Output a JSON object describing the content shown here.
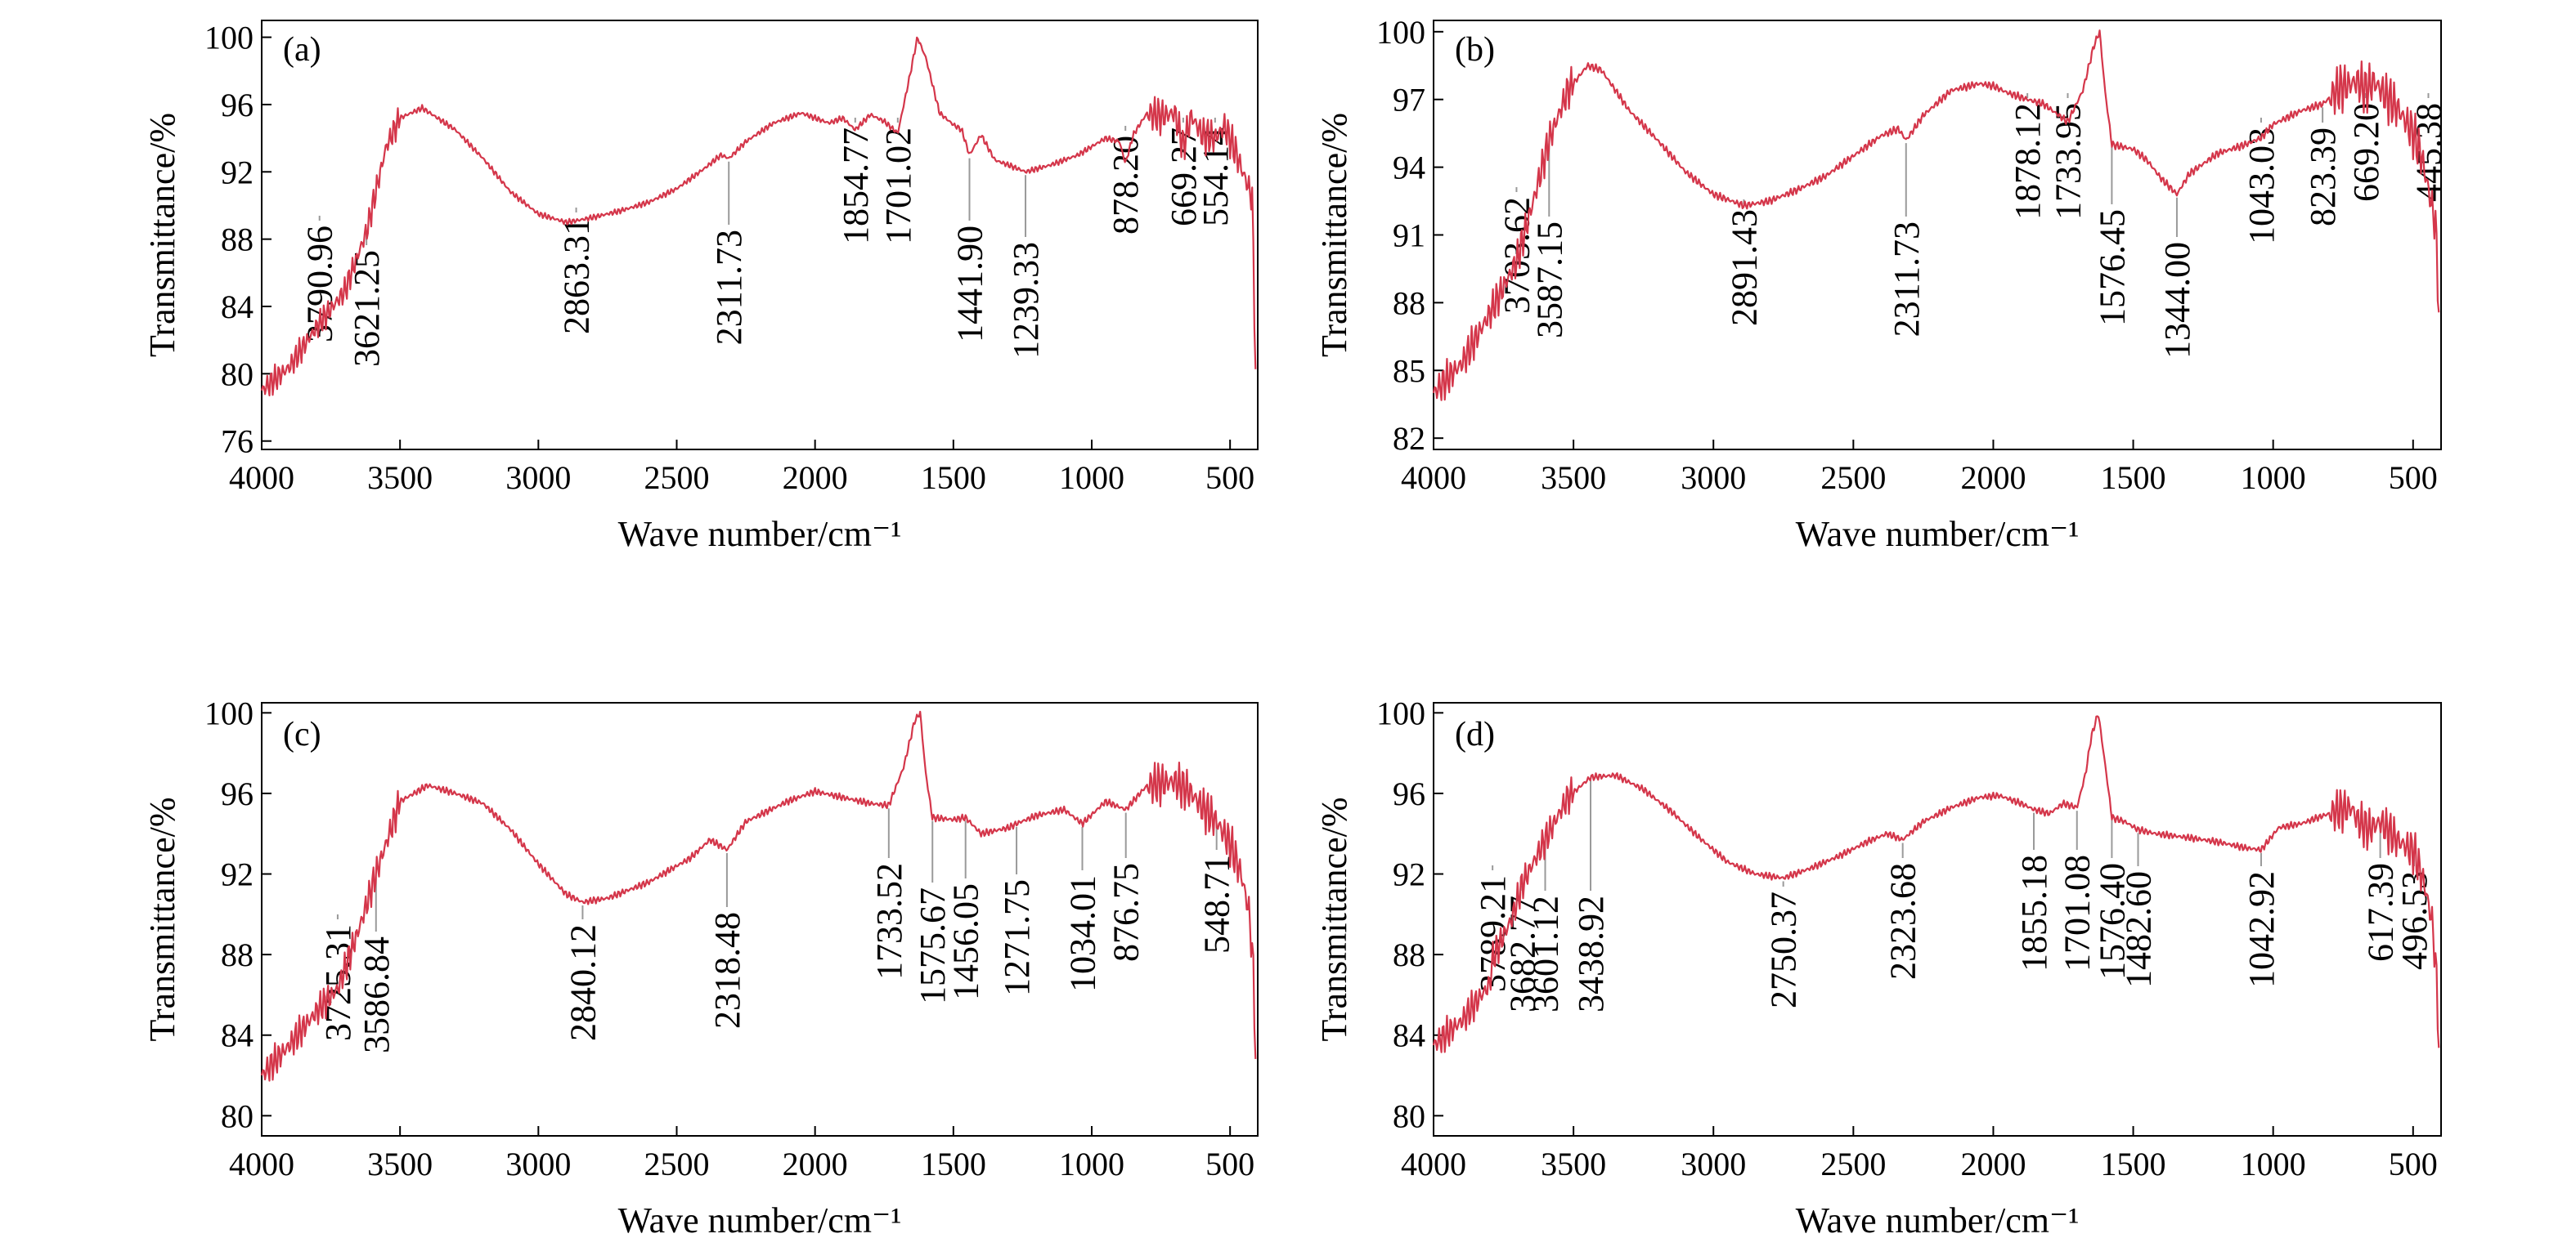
{
  "colors": {
    "spectrum": "#d4364a",
    "frame": "#000000",
    "leader": "#9a9a9a"
  },
  "chart_data": [
    {
      "type": "line",
      "panel_label": "(a)",
      "xlabel": "Wave number/cm⁻¹",
      "ylabel": "Transmittance/%",
      "xlim": [
        4000,
        400
      ],
      "ylim": [
        75.5,
        101
      ],
      "x_reversed": true,
      "xticks": [
        4000,
        3500,
        3000,
        2500,
        2000,
        1500,
        1000,
        500
      ],
      "yticks": [
        76,
        80,
        84,
        88,
        92,
        96,
        100
      ],
      "grid": false,
      "legend": "none",
      "series": [
        {
          "x": [
            4000,
            3900,
            3800,
            3700,
            3620,
            3550,
            3500,
            3420,
            3300,
            3200,
            3100,
            3000,
            2900,
            2863,
            2800,
            2700,
            2600,
            2500,
            2400,
            2340,
            2311,
            2250,
            2150,
            2050,
            2000,
            1950,
            1900,
            1855,
            1800,
            1750,
            1701,
            1660,
            1630,
            1600,
            1550,
            1500,
            1470,
            1442,
            1400,
            1350,
            1300,
            1239,
            1150,
            1050,
            950,
            900,
            878,
            850,
            800,
            750,
            700,
            669,
            640,
            600,
            554,
            520,
            480,
            450,
            420,
            410,
            405
          ],
          "y": [
            79,
            80.4,
            82.8,
            84.9,
            88.5,
            93.5,
            95.2,
            95.8,
            94.5,
            92.8,
            90.8,
            89.5,
            89.0,
            89.1,
            89.3,
            89.7,
            90.2,
            91.0,
            92.2,
            93.0,
            92.8,
            93.8,
            94.9,
            95.5,
            95.2,
            94.9,
            95.2,
            94.5,
            95.4,
            95.0,
            94.3,
            97.5,
            100,
            98.8,
            95.5,
            94.8,
            94.5,
            93.0,
            94.2,
            92.7,
            92.4,
            92.0,
            92.4,
            93.0,
            94.0,
            93.8,
            92.5,
            94.2,
            95.5,
            95.3,
            95.5,
            93.5,
            95.3,
            94.2,
            94.0,
            94.7,
            93.2,
            91.8,
            90.5,
            82,
            78.5
          ]
        }
      ],
      "annotations": [
        "3790.96",
        "3621.25",
        "2863.31",
        "2311.73",
        "1854.77",
        "1701.02",
        "1441.90",
        "1239.33",
        "878.20",
        "669.27",
        "554.14"
      ]
    },
    {
      "type": "line",
      "panel_label": "(b)",
      "xlabel": "Wave number/cm⁻¹",
      "ylabel": "Transmittance/%",
      "xlim": [
        4000,
        400
      ],
      "ylim": [
        81.5,
        100.5
      ],
      "x_reversed": true,
      "xticks": [
        4000,
        3500,
        3000,
        2500,
        2000,
        1500,
        1000,
        500
      ],
      "yticks": [
        82,
        85,
        88,
        91,
        94,
        97,
        100
      ],
      "grid": false,
      "legend": "none",
      "series": [
        {
          "x": [
            4000,
            3900,
            3800,
            3704,
            3650,
            3587,
            3520,
            3450,
            3400,
            3300,
            3200,
            3100,
            3000,
            2891,
            2800,
            2700,
            2600,
            2500,
            2400,
            2340,
            2311,
            2250,
            2150,
            2050,
            2000,
            1950,
            1878,
            1820,
            1734,
            1680,
            1640,
            1620,
            1600,
            1576,
            1500,
            1450,
            1400,
            1344,
            1300,
            1200,
            1100,
            1043,
            1000,
            900,
            823,
            760,
            700,
            669,
            640,
            600,
            550,
            500,
            470,
            445,
            420,
            405
          ],
          "y": [
            84,
            85.3,
            87.5,
            89.8,
            92.2,
            95.2,
            97.4,
            98.5,
            98.3,
            96.5,
            95.2,
            93.8,
            92.8,
            92.3,
            92.5,
            93.0,
            93.6,
            94.5,
            95.4,
            95.7,
            95.2,
            96.3,
            97.4,
            97.7,
            97.6,
            97.3,
            97.0,
            96.8,
            96.0,
            97.4,
            99.4,
            100,
            97.3,
            95.0,
            94.8,
            94.3,
            93.5,
            92.8,
            93.7,
            94.6,
            95.0,
            95.3,
            95.9,
            96.5,
            96.8,
            97.5,
            97.8,
            97.4,
            97.8,
            97.2,
            96.5,
            95.5,
            94.5,
            93.0,
            91.5,
            87
          ]
        }
      ],
      "annotations": [
        "3703.62",
        "3587.15",
        "2891.43",
        "2311.73",
        "1878.12",
        "1733.95",
        "1576.45",
        "1344.00",
        "1043.03",
        "823.39",
        "669.20",
        "445.38"
      ]
    },
    {
      "type": "line",
      "panel_label": "(c)",
      "xlabel": "Wave number/cm⁻¹",
      "ylabel": "Transmittance/%",
      "xlim": [
        4000,
        400
      ],
      "ylim": [
        79,
        100.5
      ],
      "x_reversed": true,
      "xticks": [
        4000,
        3500,
        3000,
        2500,
        2000,
        1500,
        1000,
        500
      ],
      "yticks": [
        80,
        84,
        88,
        92,
        96,
        100
      ],
      "grid": false,
      "legend": "none",
      "series": [
        {
          "x": [
            4000,
            3900,
            3800,
            3725,
            3650,
            3587,
            3500,
            3400,
            3300,
            3200,
            3100,
            3000,
            2900,
            2840,
            2750,
            2600,
            2450,
            2380,
            2318,
            2250,
            2100,
            2000,
            1900,
            1800,
            1734,
            1680,
            1640,
            1620,
            1600,
            1576,
            1500,
            1456,
            1400,
            1300,
            1272,
            1200,
            1100,
            1034,
            950,
            877,
            800,
            700,
            640,
            600,
            549,
            500,
            460,
            430,
            415,
            405
          ],
          "y": [
            82,
            83.5,
            85.2,
            86.3,
            89.2,
            92.0,
            95.6,
            96.4,
            96.0,
            95.5,
            94.2,
            92.5,
            91.0,
            90.6,
            90.8,
            91.6,
            92.8,
            93.7,
            93.2,
            94.6,
            95.6,
            96.1,
            95.8,
            95.5,
            95.4,
            97.3,
            99.6,
            100,
            97.0,
            94.8,
            94.7,
            94.8,
            94.0,
            94.3,
            94.5,
            94.9,
            95.2,
            94.5,
            95.6,
            95.2,
            96.4,
            96.6,
            96.0,
            95.3,
            94.6,
            93.5,
            92.0,
            90.0,
            87.0,
            81.5
          ]
        }
      ],
      "annotations": [
        "3725.31",
        "3586.84",
        "2840.12",
        "2318.48",
        "1733.52",
        "1575.67",
        "1456.05",
        "1271.75",
        "1034.01",
        "876.75",
        "548.71"
      ]
    },
    {
      "type": "line",
      "panel_label": "(d)",
      "xlabel": "Wave number/cm⁻¹",
      "ylabel": "Transmittance/%",
      "xlim": [
        4000,
        400
      ],
      "ylim": [
        79,
        100.5
      ],
      "x_reversed": true,
      "xticks": [
        4000,
        3500,
        3000,
        2500,
        2000,
        1500,
        1000,
        500
      ],
      "yticks": [
        80,
        84,
        88,
        92,
        96,
        100
      ],
      "grid": false,
      "legend": "none",
      "series": [
        {
          "x": [
            4000,
            3900,
            3800,
            3789,
            3720,
            3683,
            3601,
            3520,
            3439,
            3350,
            3250,
            3150,
            3050,
            2950,
            2850,
            2750,
            2650,
            2550,
            2450,
            2380,
            2324,
            2250,
            2150,
            2050,
            1980,
            1900,
            1855,
            1800,
            1750,
            1701,
            1670,
            1650,
            1625,
            1600,
            1576,
            1530,
            1483,
            1420,
            1300,
            1200,
            1100,
            1043,
            980,
            900,
            800,
            720,
            700,
            660,
            617,
            560,
            497,
            460,
            430,
            415,
            405
          ],
          "y": [
            83.5,
            84.7,
            86.5,
            87.8,
            89.8,
            91.5,
            93.7,
            95.8,
            96.8,
            96.9,
            96.2,
            95.1,
            93.8,
            92.6,
            92.0,
            91.8,
            92.3,
            92.9,
            93.6,
            94.0,
            93.7,
            94.6,
            95.3,
            95.8,
            95.9,
            95.5,
            95.2,
            95.0,
            95.5,
            95.3,
            97.0,
            98.8,
            100,
            97.4,
            94.8,
            94.6,
            94.2,
            94.0,
            93.8,
            93.6,
            93.3,
            93.2,
            94.3,
            94.5,
            95.0,
            95.3,
            94.7,
            94.2,
            94.6,
            93.7,
            93.1,
            91.5,
            89.5,
            86.5,
            82.5
          ]
        }
      ],
      "annotations": [
        "3789.21",
        "3682.77",
        "3601.12",
        "3438.92",
        "2750.37",
        "2323.68",
        "1855.18",
        "1701.08",
        "1576.40",
        "1482.60",
        "1042.92",
        "617.39",
        "496.53"
      ]
    }
  ]
}
